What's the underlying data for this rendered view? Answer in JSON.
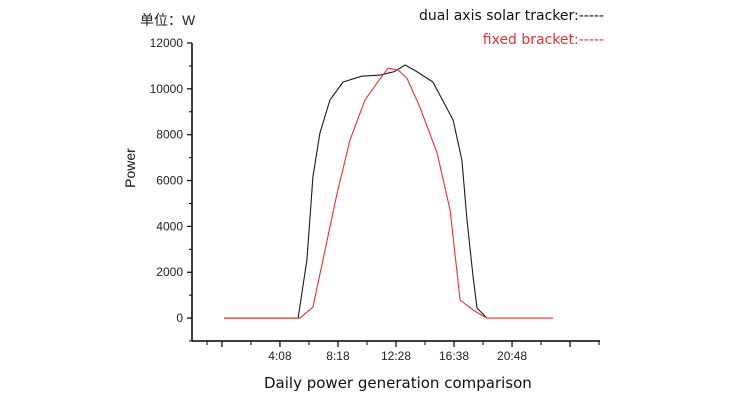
{
  "chart_data": {
    "type": "line",
    "title": "",
    "unit_label": "单位：W",
    "xlabel": "Daily power generation comparison",
    "ylabel": "Power",
    "xlim": [
      -131,
      1627
    ],
    "ylim": [
      -1000,
      12000
    ],
    "x_unit": "minutes since 0:00",
    "x_ticks": [
      -2,
      248,
      498,
      748,
      998,
      1248,
      1498
    ],
    "x_tick_labels": [
      "",
      "4:08",
      "8:18",
      "12:28",
      "16:38",
      "20:48",
      ""
    ],
    "y_ticks": [
      0,
      2000,
      4000,
      6000,
      8000,
      10000,
      12000
    ],
    "y_tick_labels": [
      "0",
      "2000",
      "4000",
      "6000",
      "8000",
      "10000",
      "12000"
    ],
    "grid": false,
    "legend_position": "top-right",
    "series": [
      {
        "name": "dual axis solar tracker:-----",
        "color": "#1a1a1a",
        "x": [
          7,
          326,
          364,
          390,
          420,
          463,
          520,
          600,
          679,
          740,
          787,
          830,
          907,
          994,
          1032,
          1054,
          1080,
          1097,
          1140
        ],
        "y": [
          0,
          0,
          2530,
          6150,
          8070,
          9510,
          10300,
          10550,
          10600,
          10750,
          11040,
          10800,
          10300,
          8640,
          6890,
          4280,
          1790,
          440,
          0
        ]
      },
      {
        "name": "fixed bracket:-----",
        "color": "#e8312f",
        "x": [
          7,
          334,
          390,
          433,
          494,
          550,
          614,
          666,
          713,
          757,
          795,
          851,
          925,
          981,
          1024,
          1080,
          1140,
          1425
        ],
        "y": [
          0,
          0,
          480,
          2530,
          5450,
          7770,
          9510,
          10250,
          10900,
          10820,
          10470,
          9200,
          7200,
          4710,
          790,
          350,
          0,
          0
        ]
      }
    ]
  }
}
